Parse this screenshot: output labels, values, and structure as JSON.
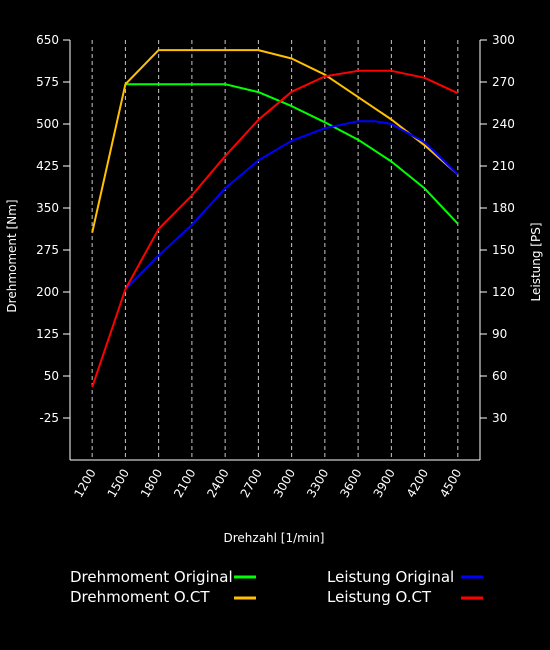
{
  "chart_data": {
    "type": "line",
    "title": "",
    "xlabel": "Drehzahl [1/min]",
    "ylabel_left": "Drehmoment [Nm]",
    "ylabel_right": "Leistung [PS]",
    "x": [
      1200,
      1500,
      1800,
      2100,
      2400,
      2700,
      3000,
      3300,
      3600,
      3900,
      4200,
      4500
    ],
    "x_tick_labels": [
      "1200",
      "1500",
      "1800",
      "2100",
      "2400",
      "2700",
      "3000",
      "3300",
      "3600",
      "3900",
      "4200",
      "4500"
    ],
    "ylim_left": [
      -100,
      650
    ],
    "ylim_right": [
      0,
      300
    ],
    "y_left_ticks": [
      "650",
      "575",
      "500",
      "425",
      "350",
      "275",
      "200",
      "125",
      "50",
      "-25"
    ],
    "y_right_ticks": [
      "300",
      "270",
      "240",
      "210",
      "180",
      "150",
      "120",
      "90",
      "60",
      "30"
    ],
    "grid": "vertical-dashed",
    "legend_position": "bottom",
    "series": [
      {
        "name": "Drehmoment Original",
        "axis": "left",
        "color": "#00ff00",
        "x": [
          1500,
          1800,
          2100,
          2400,
          2700,
          3000,
          3300,
          3600,
          3900,
          4200,
          4500
        ],
        "y": [
          571,
          571,
          571,
          571,
          557,
          532,
          503,
          472,
          433,
          385,
          322
        ]
      },
      {
        "name": "Drehmoment O.CT",
        "axis": "left",
        "color": "#ffc000",
        "x": [
          1200,
          1500,
          1800,
          2100,
          2400,
          2700,
          3000,
          3300,
          3600,
          3900,
          4200,
          4500
        ],
        "y": [
          306,
          571,
          632,
          632,
          632,
          632,
          617,
          588,
          548,
          508,
          462,
          410
        ]
      },
      {
        "name": "Leistung Original",
        "axis": "right",
        "color": "#0000ff",
        "x": [
          1500,
          1800,
          2100,
          2400,
          2700,
          3000,
          3300,
          3600,
          3750,
          3900,
          4200,
          4500
        ],
        "y": [
          122,
          146,
          168,
          194,
          214,
          228,
          237,
          242,
          242,
          240,
          227,
          204
        ]
      },
      {
        "name": "Leistung O.CT",
        "axis": "right",
        "color": "#ff0000",
        "x": [
          1200,
          1500,
          1800,
          2100,
          2400,
          2700,
          3000,
          3300,
          3600,
          3750,
          3900,
          4200,
          4500
        ],
        "y": [
          52,
          122,
          165,
          189,
          217,
          243,
          263,
          274,
          278,
          278,
          278,
          273,
          262
        ]
      }
    ]
  },
  "legend": {
    "items": [
      {
        "label": "Drehmoment Original",
        "color": "#00ff00"
      },
      {
        "label": "Drehmoment O.CT",
        "color": "#ffc000"
      },
      {
        "label": "Leistung Original",
        "color": "#0000ff"
      },
      {
        "label": "Leistung O.CT",
        "color": "#ff0000"
      }
    ]
  }
}
